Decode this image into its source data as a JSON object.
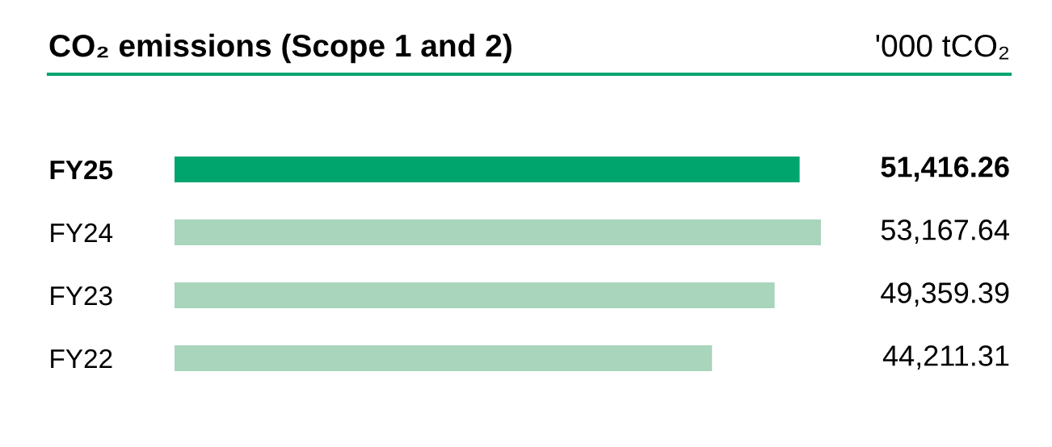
{
  "chart_data": {
    "type": "bar",
    "orientation": "horizontal",
    "title": "CO₂ emissions (Scope 1 and 2)",
    "subtitle": "'000 tCO₂",
    "categories": [
      "FY25",
      "FY24",
      "FY23",
      "FY22"
    ],
    "values": [
      51416.26,
      53167.64,
      49359.39,
      44211.31
    ],
    "colors": [
      "#00a56e",
      "#a8d5bb",
      "#a8d5bb",
      "#a8d5bb"
    ],
    "value_labels": [
      "51,416.26",
      "53,167.64",
      "49,359.39",
      "44,211.31"
    ],
    "grid": false,
    "legend": false
  }
}
